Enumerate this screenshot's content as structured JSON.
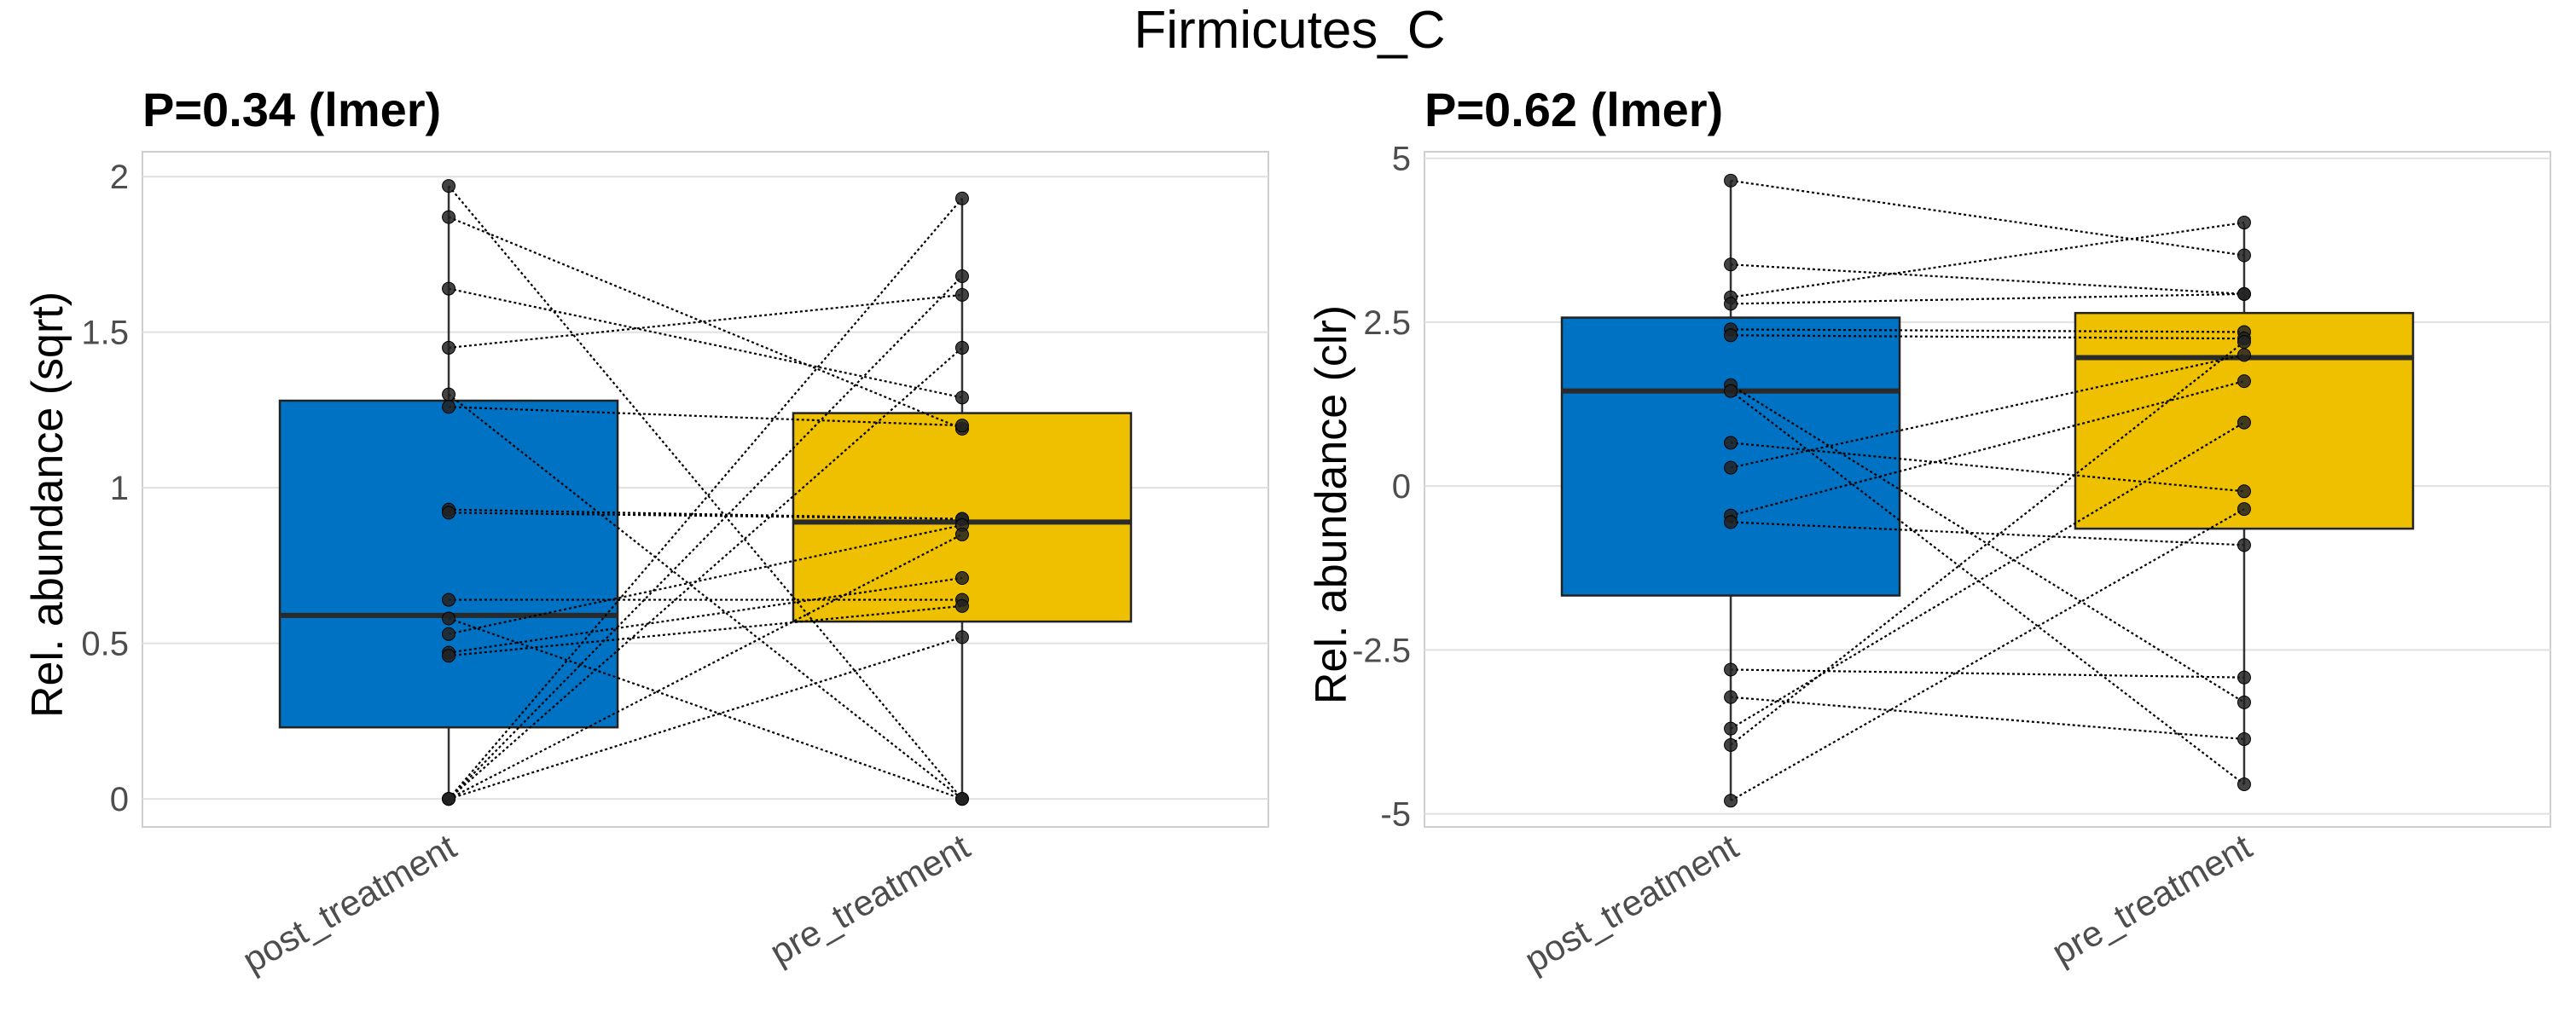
{
  "figure_title": "Firmicutes_C",
  "colors": {
    "post_treatment": "#0072C4",
    "pre_treatment": "#EFC000",
    "grid": "#e0e0e0",
    "panel_border": "#cfcfcf",
    "points": "#222222"
  },
  "chart_data": [
    {
      "type": "boxplot",
      "title": "P=0.34 (lmer)",
      "ylabel": "Rel. abundance (sqrt)",
      "xlabel": "",
      "categories": [
        "post_treatment",
        "pre_treatment"
      ],
      "ylim": [
        -0.09,
        2.08
      ],
      "yticks": [
        0,
        0.5,
        1,
        1.5,
        2
      ],
      "ytick_labels": [
        "0",
        "0.5",
        "1",
        "1.5",
        "2"
      ],
      "boxes": [
        {
          "name": "post_treatment",
          "q1": 0.23,
          "median": 0.59,
          "q3": 1.28,
          "whisker_low": 0,
          "whisker_high": 1.97
        },
        {
          "name": "pre_treatment",
          "q1": 0.57,
          "median": 0.89,
          "q3": 1.24,
          "whisker_low": 0,
          "whisker_high": 1.93
        }
      ],
      "paired_points": [
        [
          1.97,
          0
        ],
        [
          1.87,
          1.19
        ],
        [
          1.64,
          1.29
        ],
        [
          1.45,
          1.62
        ],
        [
          1.3,
          0
        ],
        [
          1.26,
          1.2
        ],
        [
          0.93,
          0.9
        ],
        [
          0.92,
          0.9
        ],
        [
          0.64,
          0.64
        ],
        [
          0.58,
          0
        ],
        [
          0.53,
          0.88
        ],
        [
          0.47,
          0.71
        ],
        [
          0.46,
          0.62
        ],
        [
          0,
          1.93
        ],
        [
          0,
          1.45
        ],
        [
          0,
          0.85
        ],
        [
          0,
          0.52
        ],
        [
          0,
          1.68
        ]
      ]
    },
    {
      "type": "boxplot",
      "title": "P=0.62 (lmer)",
      "ylabel": "Rel. abundance (clr)",
      "xlabel": "",
      "categories": [
        "post_treatment",
        "pre_treatment"
      ],
      "ylim": [
        -5.2,
        5.1
      ],
      "yticks": [
        -5,
        -2.5,
        0,
        2.5,
        5
      ],
      "ytick_labels": [
        "-5",
        "-2.5",
        "0",
        "2.5",
        "5"
      ],
      "boxes": [
        {
          "name": "post_treatment",
          "q1": -1.67,
          "median": 1.45,
          "q3": 2.57,
          "whisker_low": -4.8,
          "whisker_high": 4.66
        },
        {
          "name": "pre_treatment",
          "q1": -0.65,
          "median": 1.96,
          "q3": 2.64,
          "whisker_low": -4.55,
          "whisker_high": 4.0
        }
      ],
      "paired_points": [
        [
          4.66,
          3.52
        ],
        [
          3.38,
          2.93
        ],
        [
          2.88,
          4.02
        ],
        [
          2.78,
          2.93
        ],
        [
          2.39,
          2.35
        ],
        [
          2.3,
          2.25
        ],
        [
          1.54,
          -3.3
        ],
        [
          1.45,
          -4.55
        ],
        [
          0.66,
          -0.08
        ],
        [
          0.28,
          2.0
        ],
        [
          -0.45,
          1.6
        ],
        [
          -0.55,
          -0.9
        ],
        [
          -2.8,
          -2.92
        ],
        [
          -3.22,
          -3.86
        ],
        [
          -3.7,
          0.97
        ],
        [
          -3.95,
          2.2
        ],
        [
          -4.8,
          -0.35
        ]
      ]
    }
  ]
}
